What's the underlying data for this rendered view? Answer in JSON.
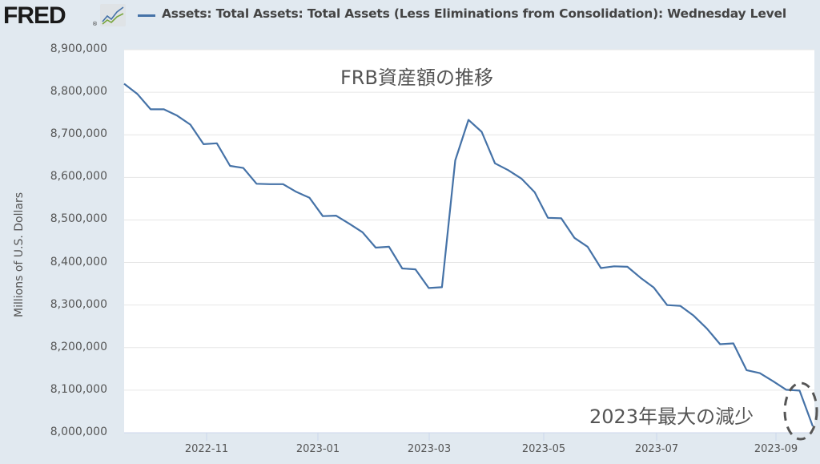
{
  "header": {
    "logo_text": "FRED",
    "logo_reg": "®",
    "legend_label": "Assets: Total Assets: Total Assets (Less Eliminations from Consolidation): Wednesday Level"
  },
  "colors": {
    "series": "#4572a7",
    "background": "#e1e9f0",
    "plot_bg": "#ffffff",
    "grid": "#e6e6e6",
    "annotation": "#555555"
  },
  "annotations": {
    "title": "FRB資産額の推移",
    "note": "2023年最大の減少"
  },
  "chart_data": {
    "type": "line",
    "title": "FRB資産額の推移",
    "legend": [
      "Assets: Total Assets: Total Assets (Less Eliminations from Consolidation): Wednesday Level"
    ],
    "legend_position": "top",
    "xlabel": "",
    "ylabel": "Millions of U.S. Dollars",
    "ylim": [
      8000000,
      8900000
    ],
    "yticks": [
      "8,000,000",
      "8,100,000",
      "8,200,000",
      "8,300,000",
      "8,400,000",
      "8,500,000",
      "8,600,000",
      "8,700,000",
      "8,800,000",
      "8,900,000"
    ],
    "xticks": [
      "2022-11",
      "2023-01",
      "2023-03",
      "2023-05",
      "2023-07",
      "2023-09"
    ],
    "grid": true,
    "frequency": "weekly",
    "x_range": [
      "2022-09-21",
      "2023-09-20"
    ],
    "series": [
      {
        "name": "Total Assets (Wednesday Level)",
        "values": [
          8820000,
          8796000,
          8760000,
          8760000,
          8745000,
          8724000,
          8678000,
          8680000,
          8627000,
          8622000,
          8585000,
          8584000,
          8584000,
          8566000,
          8552000,
          8509000,
          8510000,
          8491000,
          8471000,
          8435000,
          8437000,
          8386000,
          8384000,
          8340000,
          8342000,
          8640000,
          8735000,
          8707000,
          8633000,
          8617000,
          8597000,
          8565000,
          8505000,
          8504000,
          8458000,
          8437000,
          8387000,
          8391000,
          8390000,
          8364000,
          8341000,
          8300000,
          8298000,
          8275000,
          8245000,
          8208000,
          8210000,
          8147000,
          8140000,
          8121000,
          8101000,
          8099000,
          8015000
        ]
      }
    ],
    "annotations": [
      {
        "text": "FRB資産額の推移",
        "position": "top-center"
      },
      {
        "text": "2023年最大の減少",
        "position": "bottom-right",
        "highlight": "dashed circle around final point"
      }
    ]
  }
}
